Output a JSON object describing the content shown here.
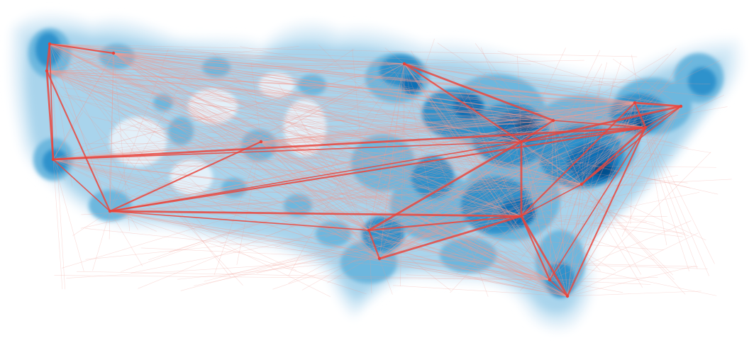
{
  "colors": {
    "background": "#ffffff",
    "density_ramp": [
      "#eef6fc",
      "#d3e9f6",
      "#a9d4ec",
      "#6db7de",
      "#2f92cc",
      "#0a6fb6",
      "#054f8e"
    ],
    "flow_line": "#e8423a",
    "flow_line_light": "#f19c93"
  },
  "layers": [
    "density-contours",
    "flight-route-lines",
    "hub-nodes"
  ],
  "hubs": [
    {
      "id": "seattle"
    },
    {
      "id": "portland"
    },
    {
      "id": "san-francisco"
    },
    {
      "id": "los-angeles"
    },
    {
      "id": "las-vegas"
    },
    {
      "id": "denver"
    },
    {
      "id": "dallas"
    },
    {
      "id": "houston"
    },
    {
      "id": "minneapolis"
    },
    {
      "id": "chicago"
    },
    {
      "id": "detroit"
    },
    {
      "id": "atlanta"
    },
    {
      "id": "charlotte"
    },
    {
      "id": "new-york"
    },
    {
      "id": "boston"
    },
    {
      "id": "washington"
    },
    {
      "id": "orlando"
    },
    {
      "id": "miami"
    }
  ]
}
